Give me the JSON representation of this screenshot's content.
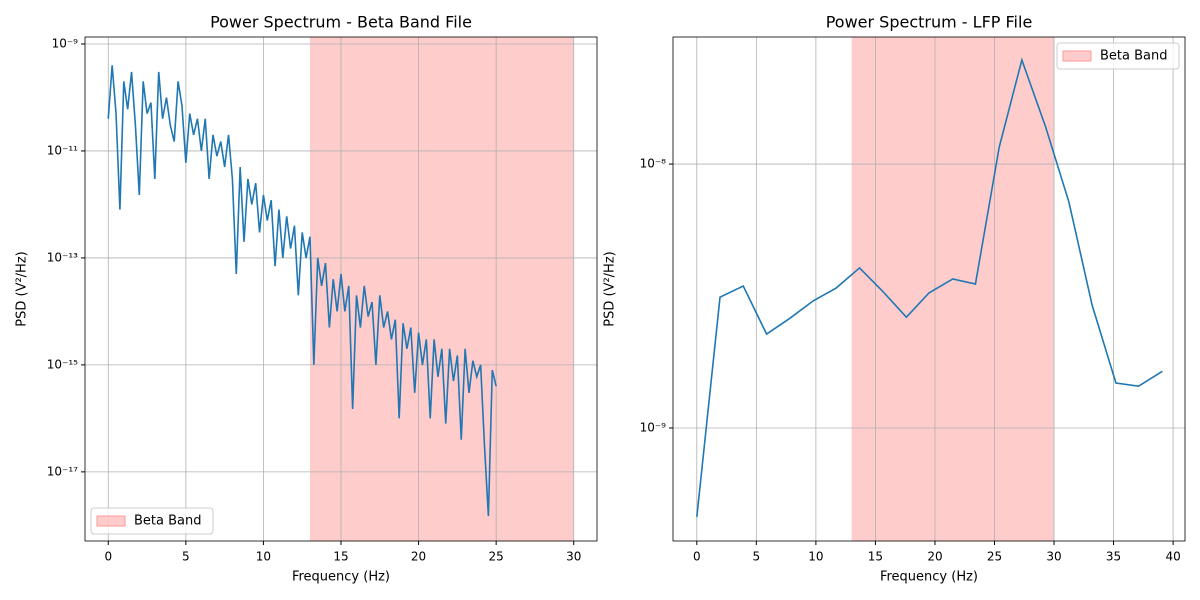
{
  "chart_data": [
    {
      "type": "line",
      "title": "Power Spectrum - Beta Band File",
      "xlabel": "Frequency (Hz)",
      "ylabel": "PSD (V²/Hz)",
      "log_y": true,
      "grid": true,
      "legend": "lower left",
      "band": {
        "label": "Beta Band",
        "range": [
          13,
          30
        ],
        "color": "#ff9999"
      },
      "xlim": [
        -1.5,
        31.5
      ],
      "ylim": [
        5.1e-19,
        1.35e-09
      ],
      "xticks": [
        0,
        5,
        10,
        15,
        20,
        25,
        30
      ],
      "yticks": [
        {
          "value": 1e-17,
          "label": "10⁻¹⁷"
        },
        {
          "value": 1e-15,
          "label": "10⁻¹⁵"
        },
        {
          "value": 1e-13,
          "label": "10⁻¹³"
        },
        {
          "value": 1e-11,
          "label": "10⁻¹¹"
        },
        {
          "value": 1e-09,
          "label": "10⁻⁹"
        }
      ],
      "x": [
        0,
        0.25,
        0.5,
        0.75,
        1,
        1.25,
        1.5,
        1.75,
        2,
        2.25,
        2.5,
        2.75,
        3,
        3.25,
        3.5,
        3.75,
        4,
        4.25,
        4.5,
        4.75,
        5,
        5.25,
        5.5,
        5.75,
        6,
        6.25,
        6.5,
        6.75,
        7,
        7.25,
        7.5,
        7.75,
        8,
        8.25,
        8.5,
        8.75,
        9,
        9.25,
        9.5,
        9.75,
        10,
        10.25,
        10.5,
        10.75,
        11,
        11.25,
        11.5,
        11.75,
        12,
        12.25,
        12.5,
        12.75,
        13,
        13.25,
        13.5,
        13.75,
        14,
        14.25,
        14.5,
        14.75,
        15,
        15.25,
        15.5,
        15.75,
        16,
        16.25,
        16.5,
        16.75,
        17,
        17.25,
        17.5,
        17.75,
        18,
        18.25,
        18.5,
        18.75,
        19,
        19.25,
        19.5,
        19.75,
        20,
        20.25,
        20.5,
        20.75,
        21,
        21.25,
        21.5,
        21.75,
        22,
        22.25,
        22.5,
        22.75,
        23,
        23.25,
        23.5,
        23.75,
        24,
        24.25,
        24.5,
        24.75,
        25
      ],
      "series": [
        {
          "color": "#1f77b4",
          "values": [
            4e-11,
            4e-10,
            5e-11,
            8e-13,
            2e-10,
            6e-11,
            3e-10,
            3e-11,
            1.5e-12,
            2e-10,
            5e-11,
            8e-11,
            3e-12,
            3e-10,
            4e-11,
            1e-10,
            3e-11,
            1.5e-11,
            2e-10,
            7e-11,
            6e-12,
            5e-11,
            2e-11,
            4e-11,
            1e-11,
            4e-11,
            3e-12,
            2e-11,
            8e-12,
            1.5e-11,
            5e-12,
            2e-11,
            3e-12,
            5e-14,
            5e-12,
            2e-13,
            3e-12,
            1e-12,
            2.5e-12,
            3e-13,
            1.5e-12,
            5e-13,
            1.2e-12,
            7e-14,
            8e-13,
            1e-13,
            6e-13,
            1.5e-13,
            4e-13,
            2e-14,
            3e-13,
            1e-13,
            2.5e-13,
            1e-15,
            1e-13,
            3e-14,
            8e-14,
            5e-15,
            4e-14,
            1e-14,
            5e-14,
            1e-14,
            3e-14,
            1.5e-16,
            2e-14,
            5e-15,
            3e-14,
            8e-15,
            1.5e-14,
            1e-15,
            2e-14,
            5e-15,
            1e-14,
            3e-15,
            7e-15,
            1e-16,
            6e-15,
            2e-15,
            5e-15,
            3e-16,
            4e-15,
            1e-15,
            3e-15,
            1e-16,
            3e-15,
            6e-16,
            2e-15,
            8e-17,
            2e-15,
            5e-16,
            1.5e-15,
            4e-17,
            2e-15,
            3e-16,
            1.2e-15,
            6e-16,
            1e-15,
            3e-17,
            1.5e-18,
            8e-16,
            4e-16
          ]
        }
      ]
    },
    {
      "type": "line",
      "title": "Power Spectrum - LFP File",
      "xlabel": "Frequency (Hz)",
      "ylabel": "PSD (V²/Hz)",
      "log_y": true,
      "grid": true,
      "legend": "upper right",
      "band": {
        "label": "Beta Band",
        "range": [
          13,
          30
        ],
        "color": "#ff9999"
      },
      "xlim": [
        -2,
        41
      ],
      "ylim": [
        3.73e-10,
        3.03e-08
      ],
      "xticks": [
        0,
        5,
        10,
        15,
        20,
        25,
        30,
        35,
        40
      ],
      "yticks": [
        {
          "value": 1e-09,
          "label": "10⁻⁹"
        },
        {
          "value": 1e-08,
          "label": "10⁻⁸"
        }
      ],
      "x": [
        0,
        1.95,
        3.9,
        5.86,
        7.8,
        9.77,
        11.7,
        13.67,
        15.6,
        17.6,
        19.5,
        21.5,
        23.4,
        25.4,
        27.3,
        29.3,
        31.25,
        33.2,
        35.2,
        37.1,
        39.1
      ],
      "series": [
        {
          "color": "#1f77b4",
          "values": [
            4.6e-10,
            3.13e-09,
            3.45e-09,
            2.27e-09,
            2.6e-09,
            3.03e-09,
            3.39e-09,
            4.04e-09,
            3.3e-09,
            2.63e-09,
            3.25e-09,
            3.67e-09,
            3.51e-09,
            1.16e-08,
            2.48e-08,
            1.38e-08,
            7.18e-09,
            2.92e-09,
            1.48e-09,
            1.44e-09,
            1.64e-09
          ]
        }
      ]
    }
  ]
}
